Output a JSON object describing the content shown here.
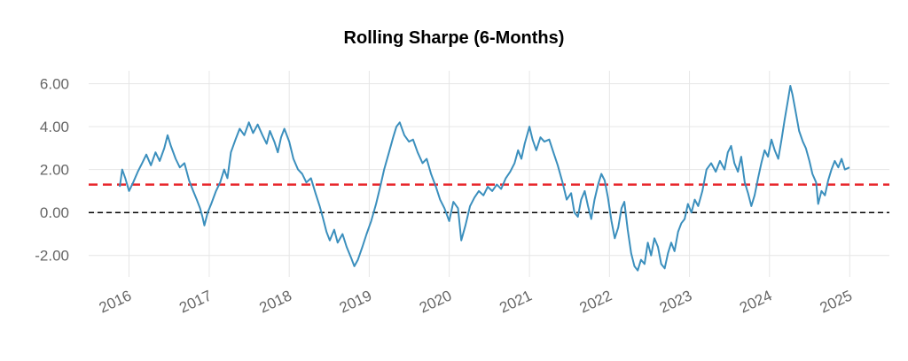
{
  "chart_data": {
    "type": "line",
    "title": "Rolling Sharpe (6-Months)",
    "xlabel": "",
    "ylabel": "",
    "x_ticks": [
      "2016",
      "2017",
      "2018",
      "2019",
      "2020",
      "2021",
      "2022",
      "2023",
      "2024",
      "2025"
    ],
    "y_ticks": [
      "6.00",
      "4.00",
      "2.00",
      "0.00",
      "-2.00"
    ],
    "xlim": [
      "2015-07-01",
      "2025-07-01"
    ],
    "ylim": [
      -3.0,
      6.6
    ],
    "grid": true,
    "colors": {
      "series": "#3b8fbd",
      "mean_line": "#e8262b",
      "zero_line": "#000000",
      "grid": "#e6e6e6",
      "tick_text": "#666666"
    },
    "reference_lines": [
      {
        "y": 1.3,
        "style": "dashed",
        "color": "#e8262b"
      },
      {
        "y": 0.0,
        "style": "dashed",
        "color": "#000000"
      }
    ],
    "series": [
      {
        "points": [
          [
            "2015-11-20",
            1.2
          ],
          [
            "2015-12-01",
            2.0
          ],
          [
            "2015-12-15",
            1.6
          ],
          [
            "2016-01-01",
            1.0
          ],
          [
            "2016-01-20",
            1.4
          ],
          [
            "2016-02-10",
            1.9
          ],
          [
            "2016-03-01",
            2.3
          ],
          [
            "2016-03-20",
            2.7
          ],
          [
            "2016-04-10",
            2.2
          ],
          [
            "2016-05-01",
            2.8
          ],
          [
            "2016-05-20",
            2.4
          ],
          [
            "2016-06-10",
            3.0
          ],
          [
            "2016-06-25",
            3.6
          ],
          [
            "2016-07-10",
            3.1
          ],
          [
            "2016-08-01",
            2.5
          ],
          [
            "2016-08-20",
            2.1
          ],
          [
            "2016-09-10",
            2.3
          ],
          [
            "2016-10-01",
            1.5
          ],
          [
            "2016-10-20",
            1.0
          ],
          [
            "2016-11-05",
            0.6
          ],
          [
            "2016-11-20",
            0.2
          ],
          [
            "2016-12-01",
            -0.2
          ],
          [
            "2016-12-10",
            -0.6
          ],
          [
            "2016-12-25",
            0.0
          ],
          [
            "2017-01-10",
            0.4
          ],
          [
            "2017-02-01",
            1.0
          ],
          [
            "2017-02-20",
            1.4
          ],
          [
            "2017-03-10",
            2.0
          ],
          [
            "2017-03-25",
            1.6
          ],
          [
            "2017-04-10",
            2.8
          ],
          [
            "2017-05-01",
            3.4
          ],
          [
            "2017-05-20",
            3.9
          ],
          [
            "2017-06-10",
            3.6
          ],
          [
            "2017-07-01",
            4.2
          ],
          [
            "2017-07-20",
            3.7
          ],
          [
            "2017-08-10",
            4.1
          ],
          [
            "2017-09-01",
            3.6
          ],
          [
            "2017-09-20",
            3.2
          ],
          [
            "2017-10-05",
            3.8
          ],
          [
            "2017-10-25",
            3.3
          ],
          [
            "2017-11-10",
            2.8
          ],
          [
            "2017-11-25",
            3.5
          ],
          [
            "2017-12-10",
            3.9
          ],
          [
            "2018-01-01",
            3.3
          ],
          [
            "2018-01-20",
            2.5
          ],
          [
            "2018-02-10",
            2.0
          ],
          [
            "2018-03-01",
            1.8
          ],
          [
            "2018-03-20",
            1.4
          ],
          [
            "2018-04-10",
            1.6
          ],
          [
            "2018-05-01",
            0.9
          ],
          [
            "2018-05-20",
            0.3
          ],
          [
            "2018-06-05",
            -0.3
          ],
          [
            "2018-06-20",
            -0.9
          ],
          [
            "2018-07-05",
            -1.3
          ],
          [
            "2018-07-25",
            -0.8
          ],
          [
            "2018-08-10",
            -1.4
          ],
          [
            "2018-09-01",
            -1.0
          ],
          [
            "2018-09-20",
            -1.6
          ],
          [
            "2018-10-10",
            -2.1
          ],
          [
            "2018-10-25",
            -2.5
          ],
          [
            "2018-11-10",
            -2.2
          ],
          [
            "2018-12-01",
            -1.6
          ],
          [
            "2018-12-20",
            -1.0
          ],
          [
            "2019-01-10",
            -0.4
          ],
          [
            "2019-02-01",
            0.4
          ],
          [
            "2019-02-20",
            1.2
          ],
          [
            "2019-03-10",
            2.0
          ],
          [
            "2019-04-01",
            2.8
          ],
          [
            "2019-04-20",
            3.5
          ],
          [
            "2019-05-05",
            4.0
          ],
          [
            "2019-05-20",
            4.2
          ],
          [
            "2019-06-10",
            3.6
          ],
          [
            "2019-07-01",
            3.3
          ],
          [
            "2019-07-20",
            3.4
          ],
          [
            "2019-08-10",
            2.8
          ],
          [
            "2019-09-01",
            2.3
          ],
          [
            "2019-09-20",
            2.5
          ],
          [
            "2019-10-10",
            1.8
          ],
          [
            "2019-11-01",
            1.2
          ],
          [
            "2019-11-20",
            0.6
          ],
          [
            "2019-12-10",
            0.2
          ],
          [
            "2020-01-01",
            -0.4
          ],
          [
            "2020-01-20",
            0.5
          ],
          [
            "2020-02-10",
            0.2
          ],
          [
            "2020-02-25",
            -1.3
          ],
          [
            "2020-03-15",
            -0.6
          ],
          [
            "2020-04-05",
            0.3
          ],
          [
            "2020-04-25",
            0.7
          ],
          [
            "2020-05-15",
            1.0
          ],
          [
            "2020-06-05",
            0.8
          ],
          [
            "2020-06-25",
            1.2
          ],
          [
            "2020-07-15",
            1.0
          ],
          [
            "2020-08-05",
            1.3
          ],
          [
            "2020-08-25",
            1.1
          ],
          [
            "2020-09-15",
            1.6
          ],
          [
            "2020-10-05",
            1.9
          ],
          [
            "2020-10-25",
            2.3
          ],
          [
            "2020-11-10",
            2.9
          ],
          [
            "2020-11-25",
            2.5
          ],
          [
            "2020-12-10",
            3.2
          ],
          [
            "2021-01-01",
            4.0
          ],
          [
            "2021-01-15",
            3.4
          ],
          [
            "2021-02-01",
            2.9
          ],
          [
            "2021-02-20",
            3.5
          ],
          [
            "2021-03-10",
            3.3
          ],
          [
            "2021-04-01",
            3.4
          ],
          [
            "2021-04-20",
            2.8
          ],
          [
            "2021-05-10",
            2.2
          ],
          [
            "2021-06-01",
            1.4
          ],
          [
            "2021-06-20",
            0.6
          ],
          [
            "2021-07-10",
            0.9
          ],
          [
            "2021-07-25",
            0.0
          ],
          [
            "2021-08-10",
            -0.2
          ],
          [
            "2021-08-25",
            0.6
          ],
          [
            "2021-09-10",
            1.0
          ],
          [
            "2021-09-25",
            0.3
          ],
          [
            "2021-10-10",
            -0.3
          ],
          [
            "2021-10-25",
            0.6
          ],
          [
            "2021-11-10",
            1.3
          ],
          [
            "2021-11-25",
            1.8
          ],
          [
            "2021-12-10",
            1.5
          ],
          [
            "2021-12-25",
            0.7
          ],
          [
            "2022-01-10",
            -0.4
          ],
          [
            "2022-01-25",
            -1.2
          ],
          [
            "2022-02-10",
            -0.7
          ],
          [
            "2022-02-25",
            0.2
          ],
          [
            "2022-03-10",
            0.5
          ],
          [
            "2022-03-25",
            -0.8
          ],
          [
            "2022-04-10",
            -1.9
          ],
          [
            "2022-04-25",
            -2.5
          ],
          [
            "2022-05-10",
            -2.7
          ],
          [
            "2022-05-25",
            -2.2
          ],
          [
            "2022-06-10",
            -2.4
          ],
          [
            "2022-06-25",
            -1.4
          ],
          [
            "2022-07-10",
            -2.0
          ],
          [
            "2022-07-25",
            -1.2
          ],
          [
            "2022-08-10",
            -1.6
          ],
          [
            "2022-08-25",
            -2.4
          ],
          [
            "2022-09-10",
            -2.6
          ],
          [
            "2022-09-25",
            -1.9
          ],
          [
            "2022-10-10",
            -1.4
          ],
          [
            "2022-10-25",
            -1.8
          ],
          [
            "2022-11-10",
            -0.9
          ],
          [
            "2022-11-25",
            -0.5
          ],
          [
            "2022-12-10",
            -0.3
          ],
          [
            "2022-12-25",
            0.4
          ],
          [
            "2023-01-10",
            0.0
          ],
          [
            "2023-01-25",
            0.6
          ],
          [
            "2023-02-10",
            0.3
          ],
          [
            "2023-03-01",
            1.0
          ],
          [
            "2023-03-20",
            2.0
          ],
          [
            "2023-04-10",
            2.3
          ],
          [
            "2023-05-01",
            1.9
          ],
          [
            "2023-05-20",
            2.4
          ],
          [
            "2023-06-10",
            2.0
          ],
          [
            "2023-06-25",
            2.8
          ],
          [
            "2023-07-10",
            3.1
          ],
          [
            "2023-07-25",
            2.3
          ],
          [
            "2023-08-10",
            1.9
          ],
          [
            "2023-08-25",
            2.6
          ],
          [
            "2023-09-10",
            1.4
          ],
          [
            "2023-09-25",
            0.9
          ],
          [
            "2023-10-10",
            0.3
          ],
          [
            "2023-10-25",
            0.8
          ],
          [
            "2023-11-10",
            1.6
          ],
          [
            "2023-11-25",
            2.3
          ],
          [
            "2023-12-10",
            2.9
          ],
          [
            "2023-12-25",
            2.6
          ],
          [
            "2024-01-10",
            3.4
          ],
          [
            "2024-01-25",
            2.9
          ],
          [
            "2024-02-10",
            2.5
          ],
          [
            "2024-02-25",
            3.4
          ],
          [
            "2024-03-10",
            4.3
          ],
          [
            "2024-03-25",
            5.2
          ],
          [
            "2024-04-05",
            5.9
          ],
          [
            "2024-04-15",
            5.5
          ],
          [
            "2024-05-01",
            4.6
          ],
          [
            "2024-05-15",
            3.8
          ],
          [
            "2024-06-01",
            3.3
          ],
          [
            "2024-06-15",
            3.0
          ],
          [
            "2024-07-01",
            2.4
          ],
          [
            "2024-07-15",
            1.8
          ],
          [
            "2024-08-01",
            1.4
          ],
          [
            "2024-08-10",
            0.4
          ],
          [
            "2024-08-25",
            1.0
          ],
          [
            "2024-09-10",
            0.8
          ],
          [
            "2024-09-25",
            1.5
          ],
          [
            "2024-10-10",
            2.0
          ],
          [
            "2024-10-25",
            2.4
          ],
          [
            "2024-11-10",
            2.1
          ],
          [
            "2024-11-25",
            2.5
          ],
          [
            "2024-12-10",
            2.0
          ],
          [
            "2024-12-31",
            2.1
          ]
        ]
      }
    ]
  }
}
